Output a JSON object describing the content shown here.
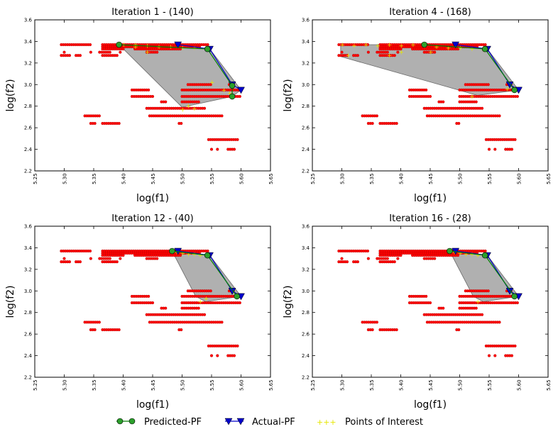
{
  "legend": {
    "predicted": "Predicted-PF",
    "actual": "Actual-PF",
    "poi": "Points of Interest"
  },
  "colors": {
    "scatter": "#ff0000",
    "predicted": "#008000",
    "predicted_marker": "#2ca02c",
    "actual": "#0000cc",
    "poi": "#e6e600",
    "hull": "#808080"
  },
  "icons": {
    "predicted": "green-circle-line",
    "actual": "blue-down-triangle-line",
    "poi": "yellow-plus-markers"
  },
  "chart_data": [
    {
      "type": "scatter",
      "title": "Iteration 1 - (140)",
      "xlabel": "log(f1)",
      "ylabel": "log(f2)",
      "xlim": [
        5.25,
        5.65
      ],
      "ylim": [
        2.2,
        3.6
      ],
      "xticks": [
        "5.25",
        "5.30",
        "5.35",
        "5.40",
        "5.45",
        "5.50",
        "5.55",
        "5.60",
        "5.65"
      ],
      "yticks": [
        "2.2",
        "2.4",
        "2.6",
        "2.8",
        "3.0",
        "3.2",
        "3.4",
        "3.6"
      ],
      "predicted_pf": [
        [
          5.393,
          3.37
        ],
        [
          5.543,
          3.33
        ],
        [
          5.585,
          2.99
        ],
        [
          5.585,
          2.89
        ]
      ],
      "actual_pf": [
        [
          5.493,
          3.37
        ],
        [
          5.547,
          3.33
        ],
        [
          5.585,
          3.0
        ],
        [
          5.6,
          2.95
        ]
      ],
      "hull": [
        [
          5.393,
          3.37
        ],
        [
          5.493,
          3.37
        ],
        [
          5.547,
          3.33
        ],
        [
          5.6,
          2.95
        ],
        [
          5.585,
          2.89
        ],
        [
          5.5,
          2.79
        ]
      ],
      "poi": [
        [
          5.4,
          3.37
        ],
        [
          5.42,
          3.37
        ],
        [
          5.44,
          3.36
        ],
        [
          5.46,
          3.35
        ],
        [
          5.48,
          3.35
        ],
        [
          5.5,
          3.34
        ],
        [
          5.52,
          3.34
        ],
        [
          5.44,
          3.3
        ],
        [
          5.42,
          3.35
        ],
        [
          5.54,
          3.33
        ],
        [
          5.55,
          3.02
        ],
        [
          5.57,
          2.95
        ],
        [
          5.58,
          2.92
        ],
        [
          5.52,
          2.78
        ],
        [
          5.5,
          2.77
        ],
        [
          5.51,
          2.8
        ]
      ]
    },
    {
      "type": "scatter",
      "title": "Iteration 4 - (168)",
      "xlabel": "log(f1)",
      "ylabel": "log(f2)",
      "xlim": [
        5.25,
        5.65
      ],
      "ylim": [
        2.2,
        3.6
      ],
      "xticks": [
        "5.25",
        "5.30",
        "5.35",
        "5.40",
        "5.45",
        "5.50",
        "5.55",
        "5.60",
        "5.65"
      ],
      "yticks": [
        "2.2",
        "2.4",
        "2.6",
        "2.8",
        "3.0",
        "3.2",
        "3.4",
        "3.6"
      ],
      "predicted_pf": [
        [
          5.44,
          3.37
        ],
        [
          5.543,
          3.33
        ],
        [
          5.593,
          2.95
        ]
      ],
      "actual_pf": [
        [
          5.493,
          3.37
        ],
        [
          5.547,
          3.33
        ],
        [
          5.585,
          3.0
        ],
        [
          5.6,
          2.95
        ]
      ],
      "hull": [
        [
          5.298,
          3.37
        ],
        [
          5.493,
          3.37
        ],
        [
          5.547,
          3.33
        ],
        [
          5.6,
          2.95
        ],
        [
          5.53,
          2.9
        ],
        [
          5.298,
          3.26
        ]
      ],
      "poi": [
        [
          5.3,
          3.37
        ],
        [
          5.32,
          3.36
        ],
        [
          5.34,
          3.37
        ],
        [
          5.36,
          3.36
        ],
        [
          5.38,
          3.37
        ],
        [
          5.4,
          3.36
        ],
        [
          5.42,
          3.37
        ],
        [
          5.44,
          3.36
        ],
        [
          5.46,
          3.35
        ],
        [
          5.48,
          3.34
        ],
        [
          5.5,
          3.34
        ],
        [
          5.52,
          3.33
        ],
        [
          5.4,
          3.3
        ],
        [
          5.38,
          3.27
        ],
        [
          5.45,
          3.3
        ],
        [
          5.31,
          3.27
        ],
        [
          5.54,
          3.32
        ],
        [
          5.58,
          2.96
        ],
        [
          5.52,
          2.89
        ]
      ]
    },
    {
      "type": "scatter",
      "title": "Iteration 12 - (40)",
      "xlabel": "log(f1)",
      "ylabel": "log(f2)",
      "xlim": [
        5.25,
        5.65
      ],
      "ylim": [
        2.2,
        3.6
      ],
      "xticks": [
        "5.25",
        "5.30",
        "5.35",
        "5.40",
        "5.45",
        "5.50",
        "5.55",
        "5.60",
        "5.65"
      ],
      "yticks": [
        "2.2",
        "2.4",
        "2.6",
        "2.8",
        "3.0",
        "3.2",
        "3.4",
        "3.6"
      ],
      "predicted_pf": [
        [
          5.483,
          3.37
        ],
        [
          5.543,
          3.33
        ],
        [
          5.593,
          2.95
        ]
      ],
      "actual_pf": [
        [
          5.493,
          3.37
        ],
        [
          5.547,
          3.33
        ],
        [
          5.585,
          3.0
        ],
        [
          5.6,
          2.95
        ]
      ],
      "hull": [
        [
          5.483,
          3.37
        ],
        [
          5.493,
          3.37
        ],
        [
          5.547,
          3.33
        ],
        [
          5.6,
          2.95
        ],
        [
          5.54,
          2.9
        ],
        [
          5.523,
          2.95
        ]
      ],
      "poi": [
        [
          5.49,
          3.36
        ],
        [
          5.5,
          3.35
        ],
        [
          5.51,
          3.34
        ],
        [
          5.52,
          3.34
        ],
        [
          5.53,
          3.33
        ],
        [
          5.53,
          2.9
        ],
        [
          5.54,
          2.93
        ]
      ]
    },
    {
      "type": "scatter",
      "title": "Iteration 16 - (28)",
      "xlabel": "log(f1)",
      "ylabel": "log(f2)",
      "xlim": [
        5.25,
        5.65
      ],
      "ylim": [
        2.2,
        3.6
      ],
      "xticks": [
        "5.25",
        "5.30",
        "5.35",
        "5.40",
        "5.45",
        "5.50",
        "5.55",
        "5.60",
        "5.65"
      ],
      "yticks": [
        "2.2",
        "2.4",
        "2.6",
        "2.8",
        "3.0",
        "3.2",
        "3.4",
        "3.6"
      ],
      "predicted_pf": [
        [
          5.483,
          3.37
        ],
        [
          5.543,
          3.33
        ],
        [
          5.593,
          2.95
        ]
      ],
      "actual_pf": [
        [
          5.493,
          3.37
        ],
        [
          5.547,
          3.33
        ],
        [
          5.585,
          3.0
        ],
        [
          5.6,
          2.95
        ]
      ],
      "hull": [
        [
          5.483,
          3.37
        ],
        [
          5.493,
          3.37
        ],
        [
          5.547,
          3.33
        ],
        [
          5.6,
          2.95
        ],
        [
          5.54,
          2.9
        ],
        [
          5.523,
          2.95
        ]
      ],
      "poi": [
        [
          5.49,
          3.36
        ],
        [
          5.5,
          3.35
        ],
        [
          5.51,
          3.34
        ],
        [
          5.52,
          3.34
        ],
        [
          5.53,
          3.33
        ],
        [
          5.53,
          2.9
        ]
      ]
    }
  ],
  "scatter_rows": [
    {
      "y": 3.37,
      "x": [
        5.295,
        5.345
      ]
    },
    {
      "y": 3.37,
      "x": [
        5.365,
        5.545
      ]
    },
    {
      "y": 3.35,
      "x": [
        5.365,
        5.53
      ]
    },
    {
      "y": 3.33,
      "x": [
        5.365,
        5.4
      ]
    },
    {
      "y": 3.33,
      "x": [
        5.42,
        5.5
      ]
    },
    {
      "y": 3.3,
      "x": [
        5.36,
        5.38
      ]
    },
    {
      "y": 3.3,
      "x": [
        5.44,
        5.46
      ]
    },
    {
      "y": 3.3,
      "x": [
        5.3,
        5.3
      ]
    },
    {
      "y": 3.3,
      "x": [
        5.345,
        5.345
      ]
    },
    {
      "y": 3.3,
      "x": [
        5.395,
        5.395
      ]
    },
    {
      "y": 3.27,
      "x": [
        5.295,
        5.31
      ]
    },
    {
      "y": 3.27,
      "x": [
        5.32,
        5.33
      ]
    },
    {
      "y": 3.27,
      "x": [
        5.365,
        5.39
      ]
    },
    {
      "y": 3.0,
      "x": [
        5.51,
        5.55
      ]
    },
    {
      "y": 3.0,
      "x": [
        5.58,
        5.59
      ]
    },
    {
      "y": 2.95,
      "x": [
        5.415,
        5.445
      ]
    },
    {
      "y": 2.95,
      "x": [
        5.5,
        5.6
      ]
    },
    {
      "y": 2.89,
      "x": [
        5.415,
        5.45
      ]
    },
    {
      "y": 2.89,
      "x": [
        5.5,
        5.6
      ]
    },
    {
      "y": 2.84,
      "x": [
        5.465,
        5.475
      ]
    },
    {
      "y": 2.84,
      "x": [
        5.5,
        5.53
      ]
    },
    {
      "y": 2.78,
      "x": [
        5.44,
        5.54
      ]
    },
    {
      "y": 2.71,
      "x": [
        5.335,
        5.36
      ]
    },
    {
      "y": 2.71,
      "x": [
        5.445,
        5.57
      ]
    },
    {
      "y": 2.64,
      "x": [
        5.345,
        5.355
      ]
    },
    {
      "y": 2.64,
      "x": [
        5.365,
        5.395
      ]
    },
    {
      "y": 2.64,
      "x": [
        5.495,
        5.5
      ]
    },
    {
      "y": 2.49,
      "x": [
        5.545,
        5.595
      ]
    },
    {
      "y": 2.4,
      "x": [
        5.55,
        5.55
      ]
    },
    {
      "y": 2.4,
      "x": [
        5.56,
        5.56
      ]
    },
    {
      "y": 2.4,
      "x": [
        5.578,
        5.59
      ]
    }
  ]
}
